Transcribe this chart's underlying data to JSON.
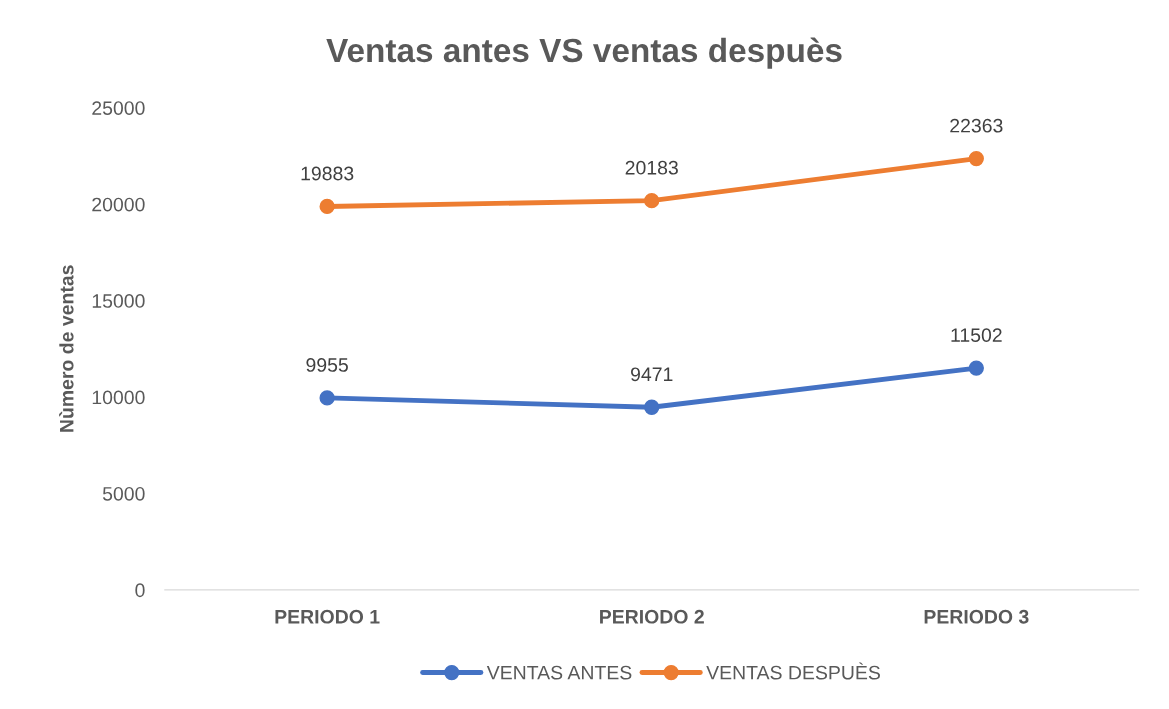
{
  "chart_data": {
    "type": "line",
    "title": "Ventas antes VS ventas despuès",
    "ylabel": "Nùmero de ventas",
    "categories": [
      "PERIODO 1",
      "PERIODO 2",
      "PERIODO 3"
    ],
    "series": [
      {
        "name": "VENTAS ANTES",
        "color": "#4472c4",
        "values": [
          9955,
          9471,
          11502
        ]
      },
      {
        "name": "VENTAS DESPUÈS",
        "color": "#ed7d31",
        "values": [
          19883,
          20183,
          22363
        ]
      }
    ],
    "ylim": [
      0,
      25000
    ],
    "yticks": [
      0,
      5000,
      10000,
      15000,
      20000,
      25000
    ],
    "grid": false,
    "legend": "bottom",
    "marker": "circle",
    "line_style": "solid",
    "data_labels": true
  }
}
